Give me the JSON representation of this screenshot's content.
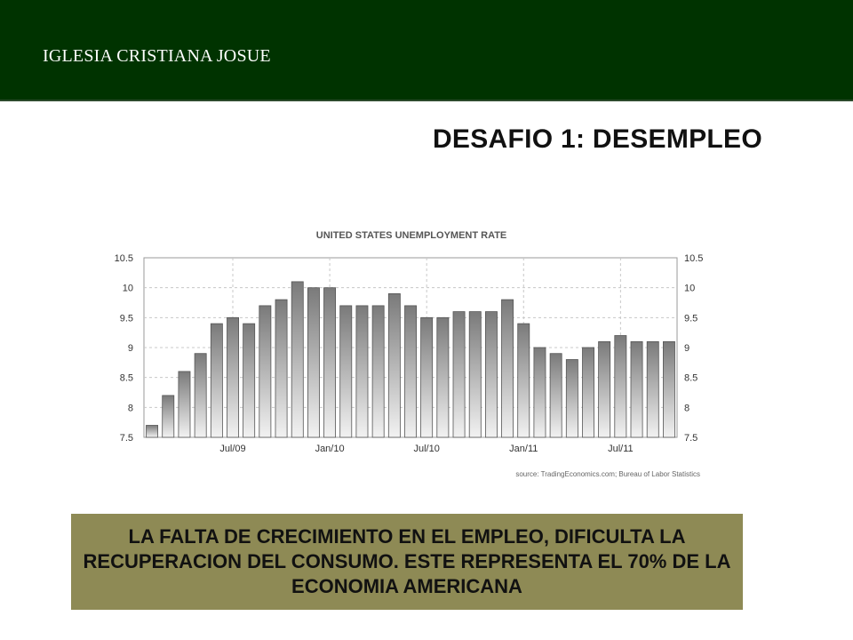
{
  "header": {
    "title": "IGLESIA CRISTIANA JOSUE",
    "bg_color": "#003300"
  },
  "slide": {
    "title": "DESAFIO 1: DESEMPLEO"
  },
  "chart_data": {
    "type": "bar",
    "title": "UNITED STATES UNEMPLOYMENT RATE",
    "source": "source: TradingEconomics.com; Bureau of Labor Statistics",
    "xlabel": "",
    "ylabel": "",
    "ylim": [
      7.5,
      10.5
    ],
    "y_ticks": [
      "10.5",
      "10",
      "9.5",
      "9",
      "8.5",
      "8",
      "7.5"
    ],
    "x_ticks": [
      "Jul/09",
      "Jan/10",
      "Jul/10",
      "Jan/11",
      "Jul/11"
    ],
    "values": [
      7.7,
      8.2,
      8.6,
      8.9,
      9.4,
      9.5,
      9.4,
      9.7,
      9.8,
      10.1,
      10.0,
      10.0,
      9.7,
      9.7,
      9.7,
      9.9,
      9.7,
      9.5,
      9.5,
      9.6,
      9.6,
      9.6,
      9.8,
      9.4,
      9.0,
      8.9,
      8.8,
      9.0,
      9.1,
      9.2,
      9.1,
      9.1,
      9.1
    ],
    "grid": true,
    "bar_color": "#8a8a8a"
  },
  "note": {
    "text": "LA FALTA DE CRECIMIENTO EN EL EMPLEO, DIFICULTA LA RECUPERACION DEL CONSUMO. ESTE REPRESENTA EL 70% DE LA ECONOMIA AMERICANA",
    "bg_color": "#8e8a55"
  }
}
